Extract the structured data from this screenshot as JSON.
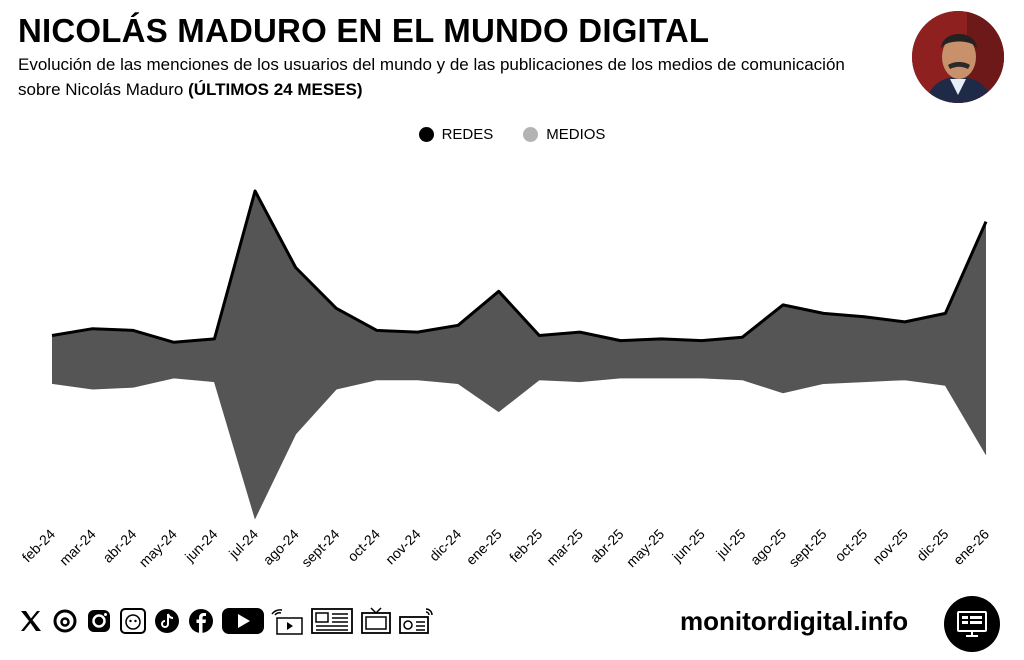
{
  "header": {
    "title": "NICOLÁS MADURO EN EL MUNDO DIGITAL",
    "subtitle_text": "Evolución de las menciones de los usuarios del mundo y de las publicaciones de los medios de comunicación sobre Nicolás Maduro",
    "subtitle_bold": "(ÚLTIMOS 24 MESES)"
  },
  "colors": {
    "redes": "#000000",
    "medios": "#b3b3b3",
    "fill": "#555555"
  },
  "chart_data": {
    "type": "area",
    "title": "NICOLÁS MADURO EN EL MUNDO DIGITAL",
    "categories": [
      "feb-24",
      "mar-24",
      "abr-24",
      "may-24",
      "jun-24",
      "jul-24",
      "ago-24",
      "sept-24",
      "oct-24",
      "nov-24",
      "dic-24",
      "ene-25",
      "feb-25",
      "mar-25",
      "abr-25",
      "may-25",
      "jun-25",
      "jul-25",
      "ago-25",
      "sept-25",
      "oct-25",
      "nov-25",
      "dic-25",
      "ene-26"
    ],
    "series": [
      {
        "name": "REDES",
        "values": [
          15,
          19,
          18,
          11,
          13,
          100,
          55,
          31,
          18,
          17,
          21,
          41,
          15,
          17,
          12,
          13,
          12,
          14,
          33,
          28,
          26,
          23,
          28,
          82
        ]
      },
      {
        "name": "MEDIOS",
        "values": [
          12,
          15,
          14,
          9,
          11,
          84,
          39,
          15,
          10,
          10,
          12,
          27,
          10,
          11,
          9,
          9,
          9,
          10,
          17,
          12,
          11,
          10,
          13,
          50
        ]
      }
    ],
    "legend": [
      "REDES",
      "MEDIOS"
    ],
    "legend_position": "top-center",
    "xlabel": "",
    "ylabel": "",
    "grid": false
  },
  "footer": {
    "site": "monitordigital.info",
    "social_icons": [
      "x-icon",
      "threads-icon",
      "instagram-icon",
      "podcast-icon",
      "tiktok-icon",
      "facebook-icon",
      "youtube-icon"
    ],
    "media_icons": [
      "web-icon",
      "press-icon",
      "tv-icon",
      "radio-icon"
    ]
  }
}
